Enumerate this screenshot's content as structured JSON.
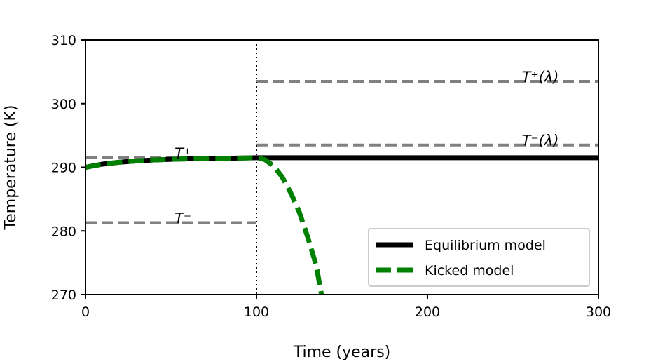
{
  "chart_data": {
    "type": "line",
    "xlabel": "Time (years)",
    "ylabel": "Temperature (K)",
    "xlim": [
      0,
      300
    ],
    "ylim": [
      270,
      310
    ],
    "xticks": [
      0,
      100,
      200,
      300
    ],
    "yticks": [
      270,
      280,
      290,
      300,
      310
    ],
    "grid": false,
    "legend_position": "bottom-right",
    "series": [
      {
        "name": "Equilibrium model",
        "color": "#000000",
        "style": "solid",
        "x": [
          0,
          10,
          20,
          30,
          40,
          50,
          60,
          70,
          80,
          90,
          100,
          150,
          200,
          250,
          300
        ],
        "y": [
          290.0,
          290.5,
          290.8,
          291.0,
          291.15,
          291.25,
          291.32,
          291.38,
          291.42,
          291.45,
          291.5,
          291.5,
          291.5,
          291.5,
          291.5
        ]
      },
      {
        "name": "Kicked model",
        "color": "#008000",
        "style": "dashed",
        "x": [
          0,
          10,
          20,
          30,
          40,
          50,
          60,
          70,
          80,
          90,
          100,
          105,
          110,
          115,
          120,
          125,
          130,
          135,
          138
        ],
        "y": [
          290.0,
          290.5,
          290.8,
          291.0,
          291.15,
          291.25,
          291.32,
          291.38,
          291.42,
          291.45,
          291.5,
          291.2,
          290.2,
          288.5,
          286.0,
          283.0,
          279.0,
          274.5,
          270.0
        ]
      }
    ],
    "reference_lines": [
      {
        "label": "T⁺",
        "y": 291.5,
        "x_range": [
          0,
          100
        ],
        "color": "#808080",
        "style": "dashed"
      },
      {
        "label": "T⁻",
        "y": 281.3,
        "x_range": [
          0,
          100
        ],
        "color": "#808080",
        "style": "dashed"
      },
      {
        "label": "T⁺(λ)",
        "y": 303.5,
        "x_range": [
          100,
          300
        ],
        "color": "#808080",
        "style": "dashed"
      },
      {
        "label": "T⁻(λ)",
        "y": 293.5,
        "x_range": [
          100,
          300
        ],
        "color": "#808080",
        "style": "dashed"
      }
    ],
    "vline": {
      "x": 100,
      "color": "#000000",
      "style": "dotted"
    }
  }
}
